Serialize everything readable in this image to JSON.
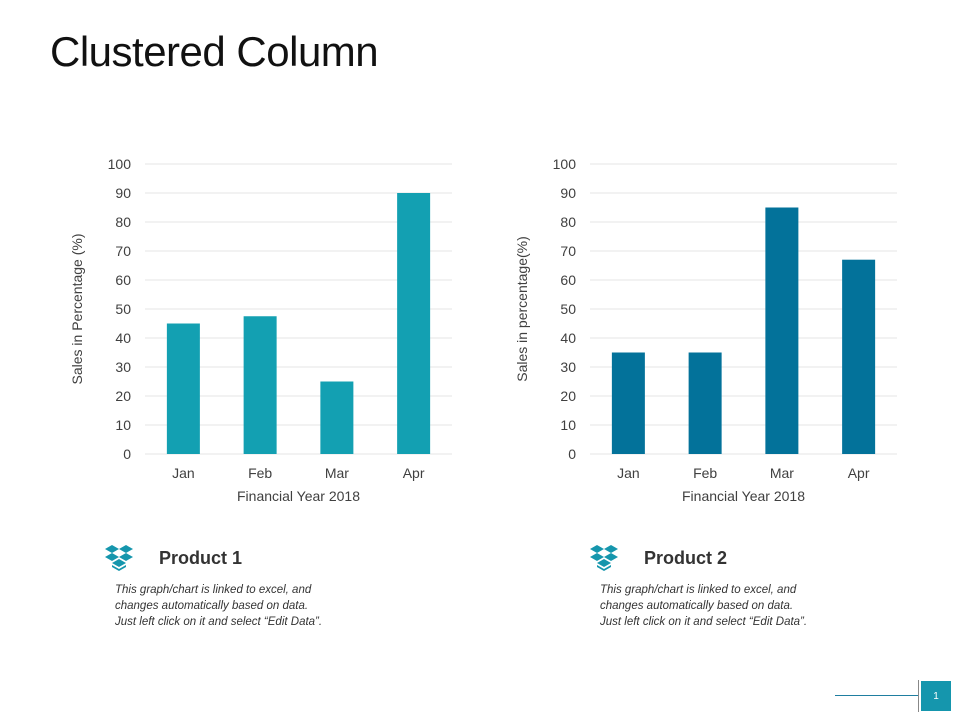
{
  "title": "Clustered Column",
  "chart_data": [
    {
      "type": "bar",
      "categories": [
        "Jan",
        "Feb",
        "Mar",
        "Apr"
      ],
      "values": [
        45,
        47.5,
        25,
        90
      ],
      "xlabel": "Financial Year 2018",
      "ylabel": "Sales in Percentage (%)",
      "ylim": [
        0,
        100
      ],
      "yticks": [
        0,
        10,
        20,
        30,
        40,
        50,
        60,
        70,
        80,
        90,
        100
      ],
      "grid": true,
      "color": "#13a0b2"
    },
    {
      "type": "bar",
      "categories": [
        "Jan",
        "Feb",
        "Mar",
        "Apr"
      ],
      "values": [
        35,
        35,
        85,
        67
      ],
      "xlabel": "Financial Year 2018",
      "ylabel": "Sales in percentage(%)",
      "ylim": [
        0,
        100
      ],
      "yticks": [
        0,
        10,
        20,
        30,
        40,
        50,
        60,
        70,
        80,
        90,
        100
      ],
      "grid": true,
      "color": "#03729a"
    }
  ],
  "legends": [
    {
      "title": "Product 1",
      "icon": "dropbox-icon",
      "desc": [
        "This graph/chart is linked to excel, and",
        "changes automatically based on data.",
        "Just left click on it and select “Edit Data”."
      ]
    },
    {
      "title": "Product 2",
      "icon": "dropbox-icon",
      "desc": [
        "This graph/chart is linked to excel, and",
        "changes automatically based on data.",
        "Just left click on it and select “Edit Data”."
      ]
    }
  ],
  "page_number": "1",
  "colors": {
    "accent": "#1596ad",
    "icon": "#1596ad"
  }
}
